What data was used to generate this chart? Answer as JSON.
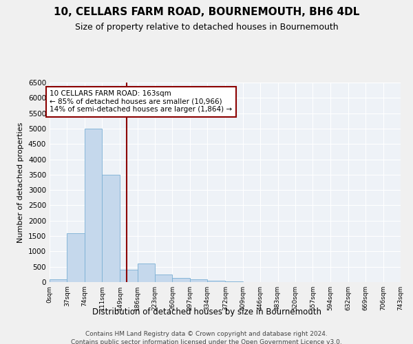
{
  "title": "10, CELLARS FARM ROAD, BOURNEMOUTH, BH6 4DL",
  "subtitle": "Size of property relative to detached houses in Bournemouth",
  "xlabel": "Distribution of detached houses by size in Bournemouth",
  "ylabel": "Number of detached properties",
  "bar_color": "#c5d8ec",
  "bar_edge_color": "#7aafd4",
  "red_line_x": 163,
  "annotation_line1": "10 CELLARS FARM ROAD: 163sqm",
  "annotation_line2": "← 85% of detached houses are smaller (10,966)",
  "annotation_line3": "14% of semi-detached houses are larger (1,864) →",
  "footer1": "Contains HM Land Registry data © Crown copyright and database right 2024.",
  "footer2": "Contains public sector information licensed under the Open Government Licence v3.0.",
  "bin_edges": [
    0,
    37,
    74,
    111,
    149,
    186,
    223,
    260,
    297,
    334,
    372,
    409,
    446,
    483,
    520,
    557,
    594,
    632,
    669,
    706,
    743
  ],
  "bin_labels": [
    "0sqm",
    "37sqm",
    "74sqm",
    "111sqm",
    "149sqm",
    "186sqm",
    "223sqm",
    "260sqm",
    "297sqm",
    "334sqm",
    "372sqm",
    "409sqm",
    "446sqm",
    "483sqm",
    "520sqm",
    "557sqm",
    "594sqm",
    "632sqm",
    "669sqm",
    "706sqm",
    "743sqm"
  ],
  "bar_heights": [
    100,
    1600,
    5000,
    3500,
    400,
    600,
    250,
    130,
    80,
    50,
    20,
    10,
    5,
    2,
    1,
    1,
    0,
    0,
    0,
    0
  ],
  "ylim": [
    0,
    6500
  ],
  "yticks": [
    0,
    500,
    1000,
    1500,
    2000,
    2500,
    3000,
    3500,
    4000,
    4500,
    5000,
    5500,
    6000,
    6500
  ],
  "bg_color": "#eef2f7",
  "grid_color": "#ffffff",
  "fig_bg": "#f0f0f0"
}
